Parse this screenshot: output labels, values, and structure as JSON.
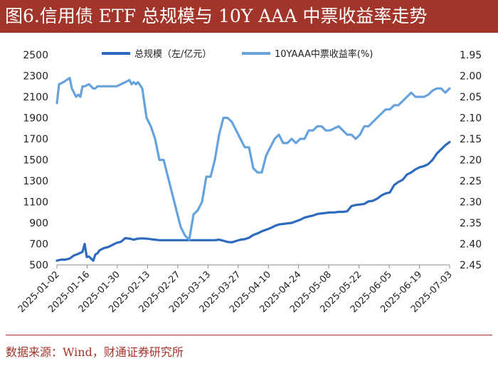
{
  "header": {
    "title": "图6.信用债 ETF 总规模与 10Y AAA 中票收益率走势"
  },
  "footer": {
    "source": "数据来源：Wind，财通证券研究所"
  },
  "colors": {
    "brand": "#a3342a",
    "series_scale": "#2e6bbf",
    "series_yield": "#66a3dd",
    "axis_text": "#222222",
    "axis_line": "#888888"
  },
  "chart_data": {
    "type": "line",
    "title": "信用债 ETF 总规模与 10Y AAA 中票收益率走势",
    "legend_position": "top",
    "x_ticks": [
      "2025-01-02",
      "2025-01-16",
      "2025-01-30",
      "2025-02-13",
      "2025-02-27",
      "2025-03-13",
      "2025-03-27",
      "2025-04-10",
      "2025-04-24",
      "2025-05-08",
      "2025-05-22",
      "2025-06-05",
      "2025-06-19",
      "2025-07-03"
    ],
    "y_left": {
      "range": [
        500,
        2500
      ],
      "ticks": [
        "500",
        "700",
        "900",
        "1100",
        "1300",
        "1500",
        "1700",
        "1900",
        "2100",
        "2300",
        "2500"
      ]
    },
    "y_right": {
      "range": [
        1.95,
        2.45
      ],
      "inverted": true,
      "ticks": [
        "1.95",
        "2.00",
        "2.05",
        "2.10",
        "2.15",
        "2.20",
        "2.25",
        "2.30",
        "2.35",
        "2.40",
        "2.45"
      ]
    },
    "series": [
      {
        "name": "总规模（左/亿元）",
        "axis": "left",
        "color": "#2e6bbf",
        "x": [
          0,
          2,
          4,
          6,
          8,
          10,
          12,
          13,
          14,
          15,
          17,
          18,
          19,
          20,
          22,
          24,
          26,
          28,
          30,
          32,
          34,
          36,
          38,
          40,
          42,
          44,
          46,
          48,
          50,
          52,
          54,
          56,
          58,
          60,
          62,
          64,
          66,
          68,
          70,
          72,
          74,
          76,
          78,
          80,
          82,
          84,
          86,
          88,
          90,
          92,
          94,
          96,
          98,
          100,
          102,
          104,
          106,
          108,
          110,
          112,
          114,
          116,
          118,
          120,
          122,
          124,
          126,
          128,
          130,
          132,
          134,
          136,
          138,
          140,
          142,
          144,
          146,
          148,
          150,
          152,
          154,
          156,
          158,
          160,
          162,
          164,
          166,
          168,
          170,
          172,
          174,
          176,
          178,
          180,
          182,
          184
        ],
        "values": [
          540,
          550,
          550,
          560,
          590,
          605,
          625,
          700,
          575,
          580,
          540,
          600,
          610,
          640,
          660,
          670,
          690,
          710,
          720,
          755,
          750,
          740,
          750,
          752,
          750,
          745,
          740,
          735,
          735,
          735,
          735,
          735,
          735,
          735,
          735,
          735,
          735,
          735,
          735,
          735,
          735,
          740,
          730,
          718,
          715,
          728,
          740,
          745,
          758,
          785,
          800,
          820,
          835,
          850,
          870,
          885,
          890,
          895,
          900,
          915,
          930,
          950,
          960,
          970,
          985,
          990,
          995,
          1000,
          1000,
          1005,
          1005,
          1010,
          1060,
          1070,
          1075,
          1080,
          1105,
          1110,
          1130,
          1160,
          1180,
          1190,
          1260,
          1290,
          1310,
          1360,
          1380,
          1410,
          1430,
          1440,
          1460,
          1500,
          1560,
          1600,
          1640,
          1670
        ],
        "note": "indices 0..184 = trading days 2025-01-02 .. 2025-07-07"
      },
      {
        "name": "10YAAA中票收益率(%)",
        "axis": "right",
        "color": "#66a3dd",
        "x": [
          0,
          1,
          3,
          6,
          7,
          8,
          9,
          10,
          11,
          12,
          13,
          15,
          16,
          17,
          18,
          19,
          20,
          22,
          24,
          26,
          28,
          30,
          32,
          34,
          35,
          36,
          37,
          38,
          40,
          42,
          44,
          46,
          48,
          50,
          52,
          54,
          56,
          58,
          60,
          62,
          64,
          66,
          68,
          70,
          72,
          74,
          76,
          78,
          80,
          82,
          84,
          86,
          88,
          90,
          92,
          94,
          96,
          98,
          100,
          102,
          104,
          106,
          108,
          110,
          112,
          114,
          116,
          118,
          120,
          122,
          124,
          126,
          128,
          130,
          132,
          134,
          136,
          138,
          140,
          142,
          144,
          146,
          148,
          150,
          152,
          154,
          156,
          158,
          160,
          162,
          164,
          166,
          168,
          170,
          172,
          174,
          176,
          178,
          180,
          182,
          184
        ],
        "values": [
          2.065,
          2.02,
          2.015,
          2.005,
          2.03,
          2.04,
          2.05,
          2.045,
          2.05,
          2.025,
          2.025,
          2.02,
          2.025,
          2.03,
          2.03,
          2.025,
          2.025,
          2.025,
          2.025,
          2.025,
          2.025,
          2.02,
          2.015,
          2.01,
          2.02,
          2.015,
          2.02,
          2.015,
          2.03,
          2.1,
          2.12,
          2.15,
          2.2,
          2.2,
          2.24,
          2.28,
          2.32,
          2.36,
          2.38,
          2.39,
          2.33,
          2.32,
          2.3,
          2.24,
          2.24,
          2.2,
          2.14,
          2.1,
          2.1,
          2.11,
          2.13,
          2.15,
          2.17,
          2.17,
          2.22,
          2.23,
          2.23,
          2.19,
          2.17,
          2.15,
          2.14,
          2.16,
          2.16,
          2.15,
          2.16,
          2.15,
          2.15,
          2.13,
          2.13,
          2.12,
          2.12,
          2.13,
          2.13,
          2.125,
          2.12,
          2.13,
          2.14,
          2.14,
          2.15,
          2.14,
          2.12,
          2.12,
          2.11,
          2.1,
          2.09,
          2.08,
          2.08,
          2.07,
          2.07,
          2.06,
          2.05,
          2.04,
          2.05,
          2.05,
          2.05,
          2.045,
          2.035,
          2.03,
          2.03,
          2.04,
          2.03
        ],
        "note": "right axis inverted: 1.95 at top, 2.45 at bottom"
      }
    ]
  }
}
